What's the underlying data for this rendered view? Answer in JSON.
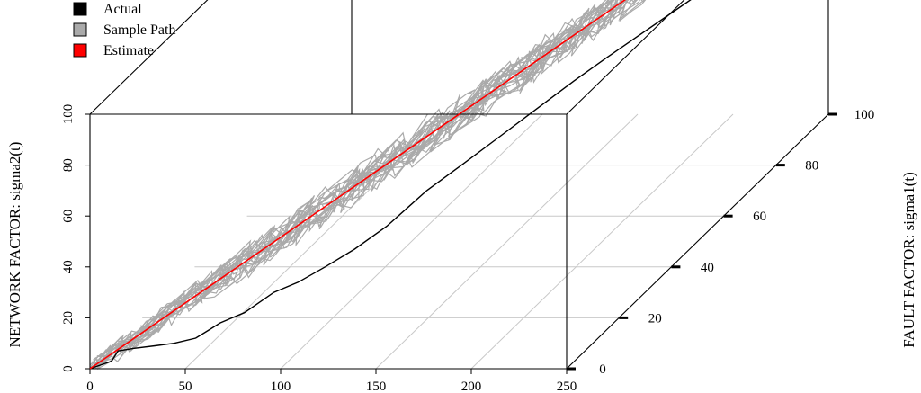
{
  "chart_data": {
    "type": "line",
    "projection": "3d",
    "title": "",
    "xlabel": "",
    "ylabel": "NETWORK FACTOR: sigma2(t)",
    "zlabel": "FAULT FACTOR: sigma1(t)",
    "xlim": [
      0,
      250
    ],
    "ylim": [
      0,
      100
    ],
    "zlim": [
      0,
      100
    ],
    "x_ticks": [
      "0",
      "50",
      "100",
      "150",
      "200",
      "250"
    ],
    "y_ticks": [
      "0",
      "20",
      "40",
      "60",
      "80",
      "100"
    ],
    "z_ticks": [
      "0",
      "20",
      "40",
      "60",
      "80",
      "100"
    ],
    "grid": "floor",
    "legend": {
      "position": "top-left",
      "entries": [
        {
          "label": "Actual",
          "color": "#000000"
        },
        {
          "label": "Sample Path",
          "color": "#aaaaaa"
        },
        {
          "label": "Estimate",
          "color": "#ff0000"
        }
      ]
    },
    "series": [
      {
        "name": "Actual",
        "color": "#000000",
        "x": [
          0,
          10,
          12,
          20,
          30,
          40,
          50,
          55,
          60,
          70,
          75,
          80,
          90,
          100,
          110,
          120,
          125,
          130,
          140,
          150,
          160,
          170,
          180,
          190,
          200,
          210,
          215,
          220,
          230,
          240,
          250
        ],
        "sigma2": [
          0,
          2,
          5,
          6,
          6,
          7,
          8,
          10,
          12,
          14,
          16,
          18,
          20,
          23,
          26,
          30,
          33,
          36,
          40,
          44,
          48,
          52,
          56,
          60,
          64,
          68,
          72,
          76,
          84,
          92,
          100
        ],
        "sigma1": [
          0,
          1,
          2,
          2,
          3,
          3,
          4,
          5,
          6,
          8,
          10,
          12,
          14,
          17,
          21,
          26,
          30,
          34,
          40,
          47,
          54,
          61,
          66,
          70,
          74,
          78,
          82,
          86,
          91,
          96,
          100
        ]
      },
      {
        "name": "Estimate",
        "color": "#ff0000",
        "x": [
          0,
          250
        ],
        "sigma2": [
          0,
          100
        ],
        "sigma1": [
          0,
          100
        ]
      }
    ]
  }
}
